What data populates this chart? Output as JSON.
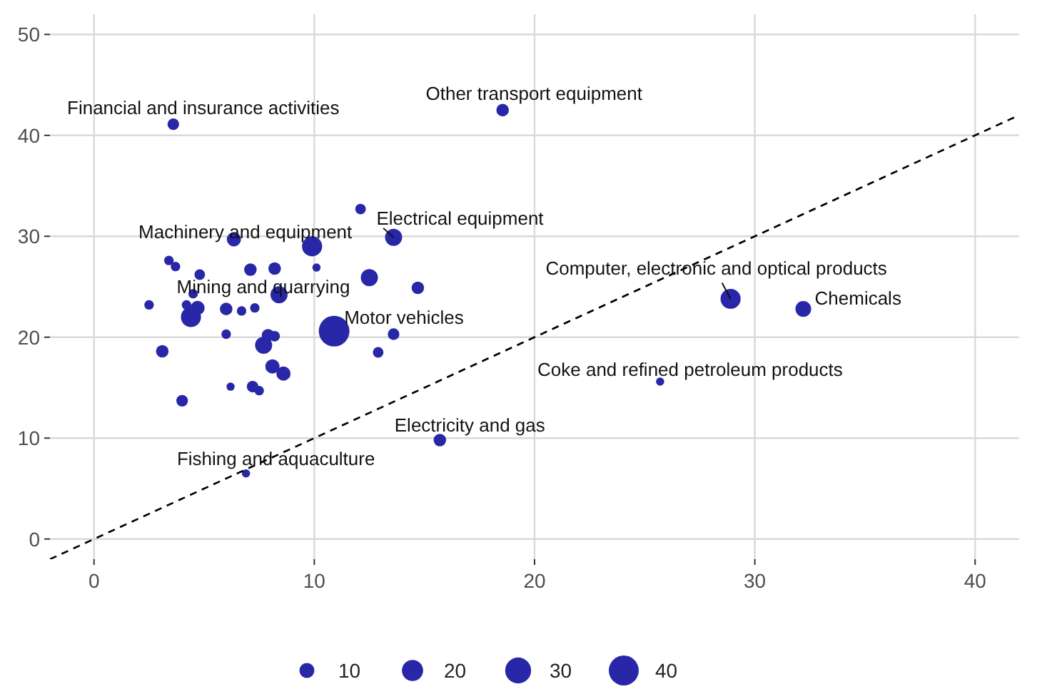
{
  "chart_data": {
    "type": "bubble",
    "xlim": [
      -2,
      42
    ],
    "ylim": [
      -2,
      52
    ],
    "xticks": [
      0,
      10,
      20,
      30,
      40
    ],
    "yticks": [
      0,
      10,
      20,
      30,
      40,
      50
    ],
    "grid": true,
    "size_legend": [
      10,
      20,
      30,
      40
    ],
    "series": [
      {
        "color": "#2727a8",
        "x": [
          3.6,
          18.55,
          6.35,
          13.6,
          28.9,
          32.2,
          25.7,
          15.7,
          6.9,
          8.4,
          10.9,
          12.1,
          9.9,
          3.4,
          3.7,
          4.8,
          7.1,
          8.2,
          10.1,
          12.5,
          14.7,
          4.5,
          2.5,
          4.2,
          4.7,
          4.4,
          6.0,
          6.7,
          7.3,
          13.6,
          6.0,
          7.9,
          8.2,
          7.7,
          3.1,
          12.9,
          8.1,
          8.6,
          6.2,
          7.2,
          7.5,
          4.0
        ],
        "values": [
          41.1,
          42.5,
          29.7,
          29.9,
          23.8,
          22.8,
          15.6,
          9.8,
          6.5,
          24.2,
          20.6,
          32.7,
          29.0,
          27.6,
          27.0,
          26.2,
          26.7,
          26.8,
          26.9,
          25.9,
          24.9,
          24.3,
          23.2,
          23.2,
          22.9,
          22.0,
          22.8,
          22.6,
          22.9,
          20.3,
          20.3,
          20.2,
          20.1,
          19.2,
          18.6,
          18.5,
          17.1,
          16.4,
          15.1,
          15.1,
          14.7,
          13.7
        ],
        "sizes": [
          6,
          7,
          9,
          13,
          18,
          11,
          3,
          7,
          3,
          13,
          42,
          5,
          18,
          4,
          4,
          5,
          7,
          7,
          3,
          13,
          7,
          4,
          4,
          4,
          9,
          18,
          7,
          4,
          4,
          6,
          4,
          7,
          5,
          13,
          7,
          5,
          9,
          9,
          3,
          6,
          4,
          6
        ]
      },
      {
        "type": "line",
        "color": "#000000",
        "line_style": "dashed",
        "marker": "none",
        "x": [
          -2,
          42
        ],
        "values": [
          -2,
          42
        ]
      }
    ],
    "annotations": [
      {
        "text": "Financial and insurance activities",
        "x": 3.6,
        "y": 41.1
      },
      {
        "text": "Other transport equipment",
        "x": 18.55,
        "y": 42.5
      },
      {
        "text": "Machinery and equipment",
        "x": 6.35,
        "y": 29.7
      },
      {
        "text": "Electrical equipment",
        "x": 13.6,
        "y": 29.9
      },
      {
        "text": "Computer, electronic and optical products",
        "x": 28.9,
        "y": 23.8
      },
      {
        "text": "Chemicals",
        "x": 32.2,
        "y": 22.8
      },
      {
        "text": "Coke and refined petroleum products",
        "x": 25.7,
        "y": 15.6
      },
      {
        "text": "Electricity and gas",
        "x": 15.7,
        "y": 9.8
      },
      {
        "text": "Fishing and aquaculture",
        "x": 6.9,
        "y": 6.5
      },
      {
        "text": "Mining and quarrying",
        "x": 8.4,
        "y": 24.2
      },
      {
        "text": "Motor vehicles",
        "x": 10.9,
        "y": 20.6
      }
    ]
  }
}
